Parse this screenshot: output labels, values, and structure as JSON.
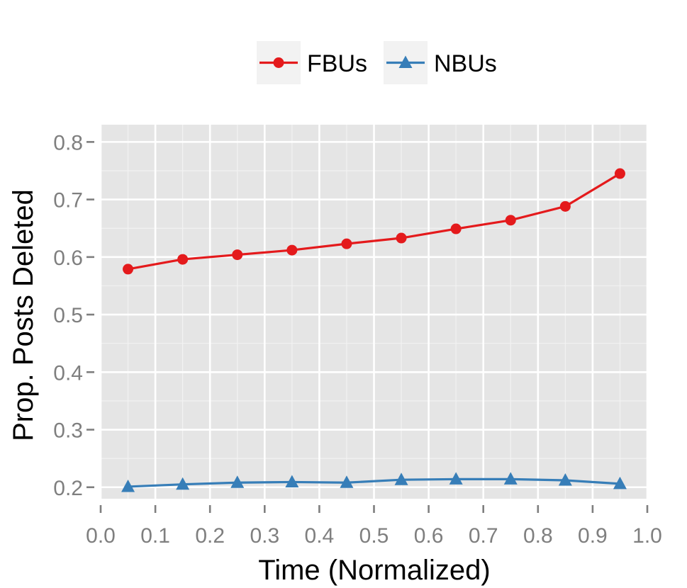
{
  "chart_data": {
    "type": "line",
    "title": "",
    "xlabel": "Time (Normalized)",
    "ylabel": "Prop. Posts Deleted",
    "xlim": [
      0.0,
      1.0
    ],
    "ylim": [
      0.18,
      0.83
    ],
    "x_ticks": [
      "0.0",
      "0.1",
      "0.2",
      "0.3",
      "0.4",
      "0.5",
      "0.6",
      "0.7",
      "0.8",
      "0.9",
      "1.0"
    ],
    "y_ticks": [
      "0.2",
      "0.3",
      "0.4",
      "0.5",
      "0.6",
      "0.7",
      "0.8"
    ],
    "x": [
      0.05,
      0.15,
      0.25,
      0.35,
      0.45,
      0.55,
      0.65,
      0.75,
      0.85,
      0.95
    ],
    "series": [
      {
        "name": "FBUs",
        "marker": "circle",
        "color": "#e41a1c",
        "values": [
          0.579,
          0.596,
          0.604,
          0.612,
          0.623,
          0.633,
          0.649,
          0.664,
          0.688,
          0.745
        ]
      },
      {
        "name": "NBUs",
        "marker": "triangle",
        "color": "#377eb8",
        "values": [
          0.201,
          0.205,
          0.208,
          0.209,
          0.208,
          0.213,
          0.214,
          0.214,
          0.212,
          0.206
        ]
      }
    ],
    "grid": true,
    "panel_background": "#e5e5e5",
    "legend_position": "top"
  }
}
